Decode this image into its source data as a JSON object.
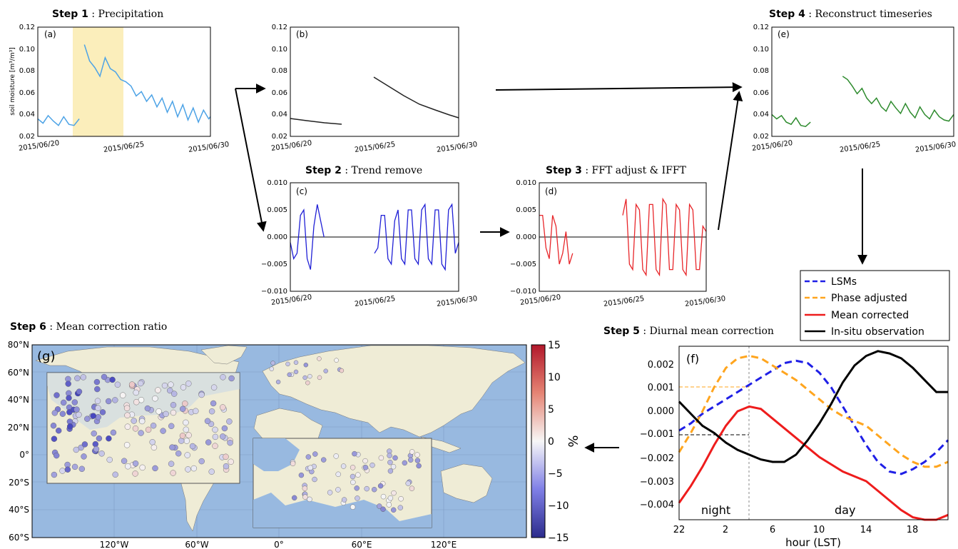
{
  "steps": {
    "s1": {
      "bold": "Step 1",
      "rest": " : Precipitation"
    },
    "s2": {
      "bold": "Step 2",
      "rest": " : Trend remove"
    },
    "s3": {
      "bold": "Step 3",
      "rest": " : FFT adjust & IFFT"
    },
    "s4": {
      "bold": "Step 4",
      "rest": " : Reconstruct timeseries"
    },
    "s5": {
      "bold": "Step 5",
      "rest": " : Diurnal mean correction"
    },
    "s6": {
      "bold": "Step 6",
      "rest": " : Mean correction ratio"
    }
  },
  "ts_xticks": [
    "2015/06/20",
    "2015/06/25",
    "2015/06/30"
  ],
  "sm_yticks": [
    "0.02",
    "0.04",
    "0.06",
    "0.08",
    "0.10",
    "0.12"
  ],
  "anom_yticks": [
    "−0.010",
    "−0.005",
    "0.000",
    "0.005",
    "0.010"
  ],
  "ylabel_a": "soil moisture [m³/m³]",
  "panel_labels": {
    "a": "(a)",
    "b": "(b)",
    "c": "(c)",
    "d": "(d)",
    "e": "(e)",
    "f": "(f)",
    "g": "(g)"
  },
  "f_yticks": [
    "0.002",
    "0.001",
    "0.000",
    "−0.001",
    "−0.002",
    "−0.003",
    "−0.004"
  ],
  "f_xticks": [
    "22",
    "2",
    "6",
    "10",
    "14",
    "18"
  ],
  "f_xlabel": "hour (LST)",
  "f_night": "night",
  "f_day": "day",
  "legend": [
    "LSMs",
    "Phase adjusted",
    "Mean corrected",
    "In-situ observation"
  ],
  "colors": {
    "precip": "#fbeebb",
    "a_line": "#4da3e6",
    "b_line": "#222222",
    "c_line": "#1f1fd6",
    "d_line": "#e8262a",
    "e_line": "#2e8b2e",
    "lsm": "#1f1fe6",
    "phase": "#ffa51e",
    "mean": "#ee1c1c",
    "obs": "#000000",
    "ocean": "#98b9e0",
    "land": "#efecd6"
  },
  "map_lat": [
    "80°N",
    "60°N",
    "40°N",
    "20°N",
    "0°",
    "20°S",
    "40°S",
    "60°S"
  ],
  "map_lon": [
    "120°W",
    "60°W",
    "0°",
    "60°E",
    "120°E"
  ],
  "cbar_ticks": [
    "15",
    "10",
    "5",
    "0",
    "−5",
    "−10",
    "−15"
  ],
  "cbar_label": "%",
  "chart_data": [
    {
      "panel": "(a)",
      "type": "line",
      "ylim": [
        0.02,
        0.12
      ],
      "x": [
        0,
        0.3,
        0.6,
        0.9,
        1.2,
        1.5,
        1.8,
        2.1,
        2.4,
        2.7,
        3.0,
        3.3,
        3.6,
        3.9,
        4.2,
        4.5,
        4.8,
        5.1,
        5.4,
        5.7,
        6.0,
        6.3,
        6.6,
        6.9,
        7.2,
        7.5,
        7.8,
        8.1,
        8.4,
        8.7,
        9.0,
        9.3,
        9.6,
        9.9,
        10.0
      ],
      "y": [
        0.036,
        0.032,
        0.039,
        0.034,
        0.03,
        0.038,
        0.031,
        0.03,
        0.036,
        0.104,
        0.089,
        0.083,
        0.075,
        0.092,
        0.082,
        0.079,
        0.072,
        0.07,
        0.066,
        0.057,
        0.061,
        0.052,
        0.058,
        0.047,
        0.055,
        0.042,
        0.052,
        0.038,
        0.049,
        0.035,
        0.046,
        0.033,
        0.044,
        0.036,
        0.038
      ]
    },
    {
      "panel": "(c)",
      "type": "line",
      "ylim": [
        -0.01,
        0.01
      ],
      "x": [
        0,
        0.2,
        0.4,
        0.6,
        0.8,
        1.0,
        1.2,
        1.4,
        1.6,
        1.8,
        2.0,
        5.0,
        5.2,
        5.4,
        5.6,
        5.8,
        6.0,
        6.2,
        6.4,
        6.6,
        6.8,
        7.0,
        7.2,
        7.4,
        7.6,
        7.8,
        8.0,
        8.2,
        8.4,
        8.6,
        8.8,
        9.0,
        9.2,
        9.4,
        9.6,
        9.8,
        10.0
      ],
      "y": [
        -0.001,
        -0.004,
        -0.003,
        0.004,
        0.005,
        -0.004,
        -0.006,
        0.002,
        0.006,
        0.003,
        0.0,
        -0.003,
        -0.002,
        0.004,
        0.004,
        -0.004,
        -0.005,
        0.003,
        0.005,
        -0.004,
        -0.005,
        0.005,
        0.005,
        -0.004,
        -0.005,
        0.005,
        0.006,
        -0.004,
        -0.005,
        0.005,
        0.005,
        -0.005,
        -0.006,
        0.005,
        0.006,
        -0.003,
        -0.001
      ]
    },
    {
      "panel": "(d)",
      "type": "line",
      "ylim": [
        -0.01,
        0.01
      ],
      "x": [
        0,
        0.2,
        0.4,
        0.6,
        0.8,
        1.0,
        1.2,
        1.4,
        1.6,
        1.8,
        2.0,
        5.0,
        5.2,
        5.4,
        5.6,
        5.8,
        6.0,
        6.2,
        6.4,
        6.6,
        6.8,
        7.0,
        7.2,
        7.4,
        7.6,
        7.8,
        8.0,
        8.2,
        8.4,
        8.6,
        8.8,
        9.0,
        9.2,
        9.4,
        9.6,
        9.8,
        10.0
      ],
      "y": [
        0.004,
        0.004,
        -0.002,
        -0.004,
        0.004,
        0.002,
        -0.005,
        -0.003,
        0.001,
        -0.005,
        -0.003,
        0.004,
        0.007,
        -0.005,
        -0.006,
        0.006,
        0.005,
        -0.006,
        -0.007,
        0.006,
        0.006,
        -0.006,
        -0.007,
        0.007,
        0.006,
        -0.006,
        -0.006,
        0.006,
        0.005,
        -0.006,
        -0.007,
        0.006,
        0.005,
        -0.006,
        -0.006,
        0.002,
        0.001
      ]
    },
    {
      "panel": "(f)",
      "type": "line",
      "xlim": [
        22,
        45
      ],
      "ylim": [
        -0.0045,
        0.0027
      ],
      "x": [
        22,
        23,
        24,
        25,
        26,
        27,
        28,
        29,
        30,
        31,
        32,
        33,
        34,
        35,
        36,
        37,
        38,
        39,
        40,
        41,
        42,
        43,
        44,
        45
      ],
      "series": [
        {
          "name": "LSMs",
          "values": [
            -0.0008,
            -0.0005,
            -0.0001,
            0.0002,
            0.0005,
            0.0008,
            0.0011,
            0.0014,
            0.0017,
            0.002,
            0.0021,
            0.002,
            0.0016,
            0.001,
            0.0002,
            -0.0006,
            -0.0014,
            -0.0021,
            -0.0025,
            -0.0026,
            -0.0024,
            -0.0021,
            -0.0017,
            -0.0012
          ]
        },
        {
          "name": "Phase adjusted",
          "values": [
            -0.0017,
            -0.0009,
            0.0,
            0.001,
            0.0018,
            0.0022,
            0.0023,
            0.0022,
            0.0019,
            0.0016,
            0.0013,
            0.0009,
            0.0005,
            0.0001,
            -0.0002,
            -0.0004,
            -0.0006,
            -0.001,
            -0.0014,
            -0.0018,
            -0.0021,
            -0.0023,
            -0.0023,
            -0.0021
          ]
        },
        {
          "name": "Mean corrected",
          "values": [
            -0.0038,
            -0.0031,
            -0.0023,
            -0.0014,
            -0.0006,
            0.0,
            0.0002,
            0.0001,
            -0.0003,
            -0.0007,
            -0.0011,
            -0.0015,
            -0.0019,
            -0.0022,
            -0.0025,
            -0.0027,
            -0.0029,
            -0.0033,
            -0.0037,
            -0.0041,
            -0.0044,
            -0.0045,
            -0.0045,
            -0.0043
          ]
        },
        {
          "name": "In-situ observation",
          "values": [
            0.0004,
            -0.0001,
            -0.0006,
            -0.0009,
            -0.0013,
            -0.0016,
            -0.0018,
            -0.002,
            -0.0021,
            -0.0021,
            -0.0018,
            -0.0012,
            -0.0005,
            0.0003,
            0.0012,
            0.0019,
            0.0023,
            0.0025,
            0.0024,
            0.0022,
            0.0018,
            0.0013,
            0.0008,
            0.0008
          ]
        }
      ]
    }
  ]
}
